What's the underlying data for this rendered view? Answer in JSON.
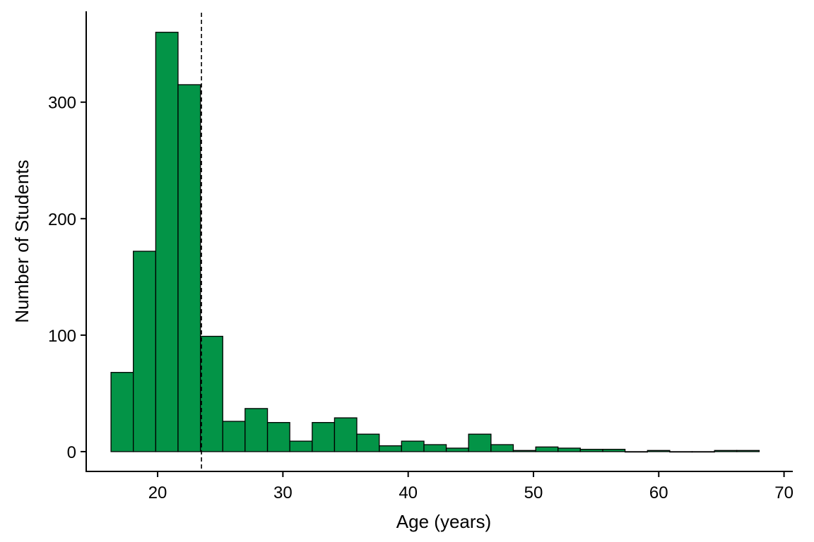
{
  "chart_data": {
    "type": "bar",
    "subtype": "histogram",
    "xlabel": "Age (years)",
    "ylabel": "Number of Students",
    "xlim": [
      14.3,
      70.7
    ],
    "ylim": [
      -17,
      378
    ],
    "x_ticks": [
      20,
      30,
      40,
      50,
      60,
      70
    ],
    "y_ticks": [
      0,
      100,
      200,
      300
    ],
    "grid": false,
    "legend": "none",
    "bin_width": 1.784,
    "bin_start": 16.28,
    "bins": [
      {
        "x0": 16.28,
        "x1": 18.06,
        "count": 68
      },
      {
        "x0": 18.06,
        "x1": 19.85,
        "count": 172
      },
      {
        "x0": 19.85,
        "x1": 21.63,
        "count": 360
      },
      {
        "x0": 21.63,
        "x1": 23.42,
        "count": 315
      },
      {
        "x0": 23.42,
        "x1": 25.2,
        "count": 99
      },
      {
        "x0": 25.2,
        "x1": 26.98,
        "count": 26
      },
      {
        "x0": 26.98,
        "x1": 28.77,
        "count": 37
      },
      {
        "x0": 28.77,
        "x1": 30.55,
        "count": 25
      },
      {
        "x0": 30.55,
        "x1": 32.34,
        "count": 9
      },
      {
        "x0": 32.34,
        "x1": 34.12,
        "count": 25
      },
      {
        "x0": 34.12,
        "x1": 35.9,
        "count": 29
      },
      {
        "x0": 35.9,
        "x1": 37.69,
        "count": 15
      },
      {
        "x0": 37.69,
        "x1": 39.47,
        "count": 5
      },
      {
        "x0": 39.47,
        "x1": 41.26,
        "count": 9
      },
      {
        "x0": 41.26,
        "x1": 43.04,
        "count": 6
      },
      {
        "x0": 43.04,
        "x1": 44.82,
        "count": 3
      },
      {
        "x0": 44.82,
        "x1": 46.61,
        "count": 15
      },
      {
        "x0": 46.61,
        "x1": 48.39,
        "count": 6
      },
      {
        "x0": 48.39,
        "x1": 50.18,
        "count": 1
      },
      {
        "x0": 50.18,
        "x1": 51.96,
        "count": 4
      },
      {
        "x0": 51.96,
        "x1": 53.74,
        "count": 3
      },
      {
        "x0": 53.74,
        "x1": 55.53,
        "count": 2
      },
      {
        "x0": 55.53,
        "x1": 57.31,
        "count": 2
      },
      {
        "x0": 57.31,
        "x1": 59.1,
        "count": 0
      },
      {
        "x0": 59.1,
        "x1": 60.88,
        "count": 1
      },
      {
        "x0": 60.88,
        "x1": 62.66,
        "count": 0
      },
      {
        "x0": 62.66,
        "x1": 64.45,
        "count": 0
      },
      {
        "x0": 64.45,
        "x1": 66.23,
        "count": 1
      },
      {
        "x0": 66.23,
        "x1": 68.02,
        "count": 1
      }
    ],
    "reference_line": {
      "x": 23.5,
      "style": "dashed"
    },
    "bar_color": "#039447",
    "bar_edge_color": "#000000"
  }
}
